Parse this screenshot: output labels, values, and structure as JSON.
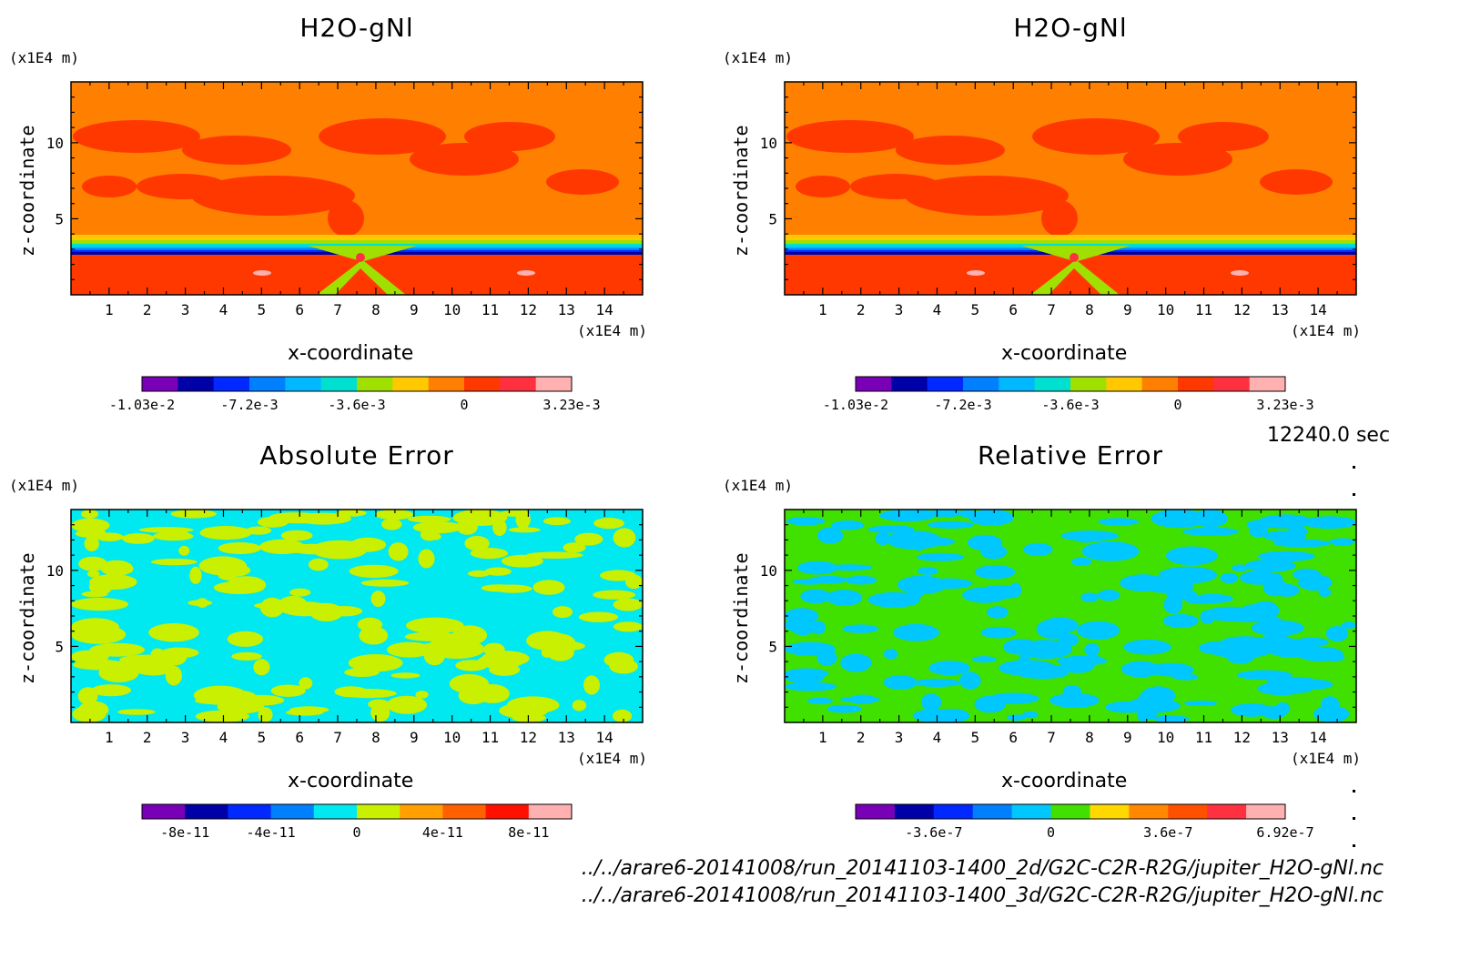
{
  "time_label": "12240.0 sec",
  "files": [
    "../../arare6-20141008/run_20141103-1400_2d/G2C-C2R-R2G/jupiter_H2O-gNl.nc",
    "../../arare6-20141008/run_20141103-1400_3d/G2C-C2R-R2G/jupiter_H2O-gNl.nc"
  ],
  "chart_data": [
    {
      "type": "heatmap",
      "title": "H2O-gNl",
      "xlabel": "x-coordinate",
      "ylabel": "z-coordinate",
      "x_unit": "(x1E4 m)",
      "y_unit": "(x1E4 m)",
      "xlim": [
        0,
        15
      ],
      "ylim": [
        0,
        14
      ],
      "x_ticks": [
        "1",
        "2",
        "3",
        "4",
        "5",
        "6",
        "7",
        "8",
        "9",
        "10",
        "11",
        "12",
        "13",
        "14"
      ],
      "y_ticks": [
        "5",
        "10"
      ],
      "colorbar": {
        "colors": [
          "#7a00b8",
          "#0000a8",
          "#0028ff",
          "#0080ff",
          "#00b8ff",
          "#00e0d0",
          "#a0e000",
          "#ffc800",
          "#ff8000",
          "#ff3800",
          "#ff3040",
          "#ffb0b0"
        ],
        "tick_labels": [
          "-1.03e-2",
          "-7.2e-3",
          "-3.6e-3",
          "0",
          "3.23e-3"
        ],
        "tick_index": [
          0,
          3,
          6,
          9,
          12
        ]
      },
      "pattern": "gas"
    },
    {
      "type": "heatmap",
      "title": "H2O-gNl",
      "xlabel": "x-coordinate",
      "ylabel": "z-coordinate",
      "x_unit": "(x1E4 m)",
      "y_unit": "(x1E4 m)",
      "xlim": [
        0,
        15
      ],
      "ylim": [
        0,
        14
      ],
      "x_ticks": [
        "1",
        "2",
        "3",
        "4",
        "5",
        "6",
        "7",
        "8",
        "9",
        "10",
        "11",
        "12",
        "13",
        "14"
      ],
      "y_ticks": [
        "5",
        "10"
      ],
      "colorbar": {
        "colors": [
          "#7a00b8",
          "#0000a8",
          "#0028ff",
          "#0080ff",
          "#00b8ff",
          "#00e0d0",
          "#a0e000",
          "#ffc800",
          "#ff8000",
          "#ff3800",
          "#ff3040",
          "#ffb0b0"
        ],
        "tick_labels": [
          "-1.03e-2",
          "-7.2e-3",
          "-3.6e-3",
          "0",
          "3.23e-3"
        ],
        "tick_index": [
          0,
          3,
          6,
          9,
          12
        ]
      },
      "pattern": "gas"
    },
    {
      "type": "heatmap",
      "title": "Absolute Error",
      "xlabel": "x-coordinate",
      "ylabel": "z-coordinate",
      "x_unit": "(x1E4 m)",
      "y_unit": "(x1E4 m)",
      "xlim": [
        0,
        15
      ],
      "ylim": [
        0,
        14
      ],
      "x_ticks": [
        "1",
        "2",
        "3",
        "4",
        "5",
        "6",
        "7",
        "8",
        "9",
        "10",
        "11",
        "12",
        "13",
        "14"
      ],
      "y_ticks": [
        "5",
        "10"
      ],
      "colorbar": {
        "colors": [
          "#7a00b8",
          "#0000a8",
          "#0028ff",
          "#0080ff",
          "#00e8f0",
          "#c8f000",
          "#ffa000",
          "#ff6000",
          "#ff1000",
          "#ffb0b0"
        ],
        "tick_labels": [
          "-8e-11",
          "-4e-11",
          "0",
          "4e-11",
          "8e-11"
        ],
        "tick_index": [
          1,
          3,
          5,
          7,
          9
        ]
      },
      "pattern": "abs"
    },
    {
      "type": "heatmap",
      "title": "Relative Error",
      "xlabel": "x-coordinate",
      "ylabel": "z-coordinate",
      "x_unit": "(x1E4 m)",
      "y_unit": "(x1E4 m)",
      "xlim": [
        0,
        15
      ],
      "ylim": [
        0,
        14
      ],
      "x_ticks": [
        "1",
        "2",
        "3",
        "4",
        "5",
        "6",
        "7",
        "8",
        "9",
        "10",
        "11",
        "12",
        "13",
        "14"
      ],
      "y_ticks": [
        "5",
        "10"
      ],
      "colorbar": {
        "colors": [
          "#7a00b8",
          "#0000a8",
          "#0028ff",
          "#0080ff",
          "#00c8ff",
          "#40e000",
          "#ffd800",
          "#ff8800",
          "#ff5000",
          "#ff3040",
          "#ffb0b0"
        ],
        "tick_labels": [
          "-3.6e-7",
          "0",
          "3.6e-7",
          "6.92e-7"
        ],
        "tick_index": [
          2,
          5,
          8,
          11
        ]
      },
      "pattern": "rel"
    }
  ]
}
